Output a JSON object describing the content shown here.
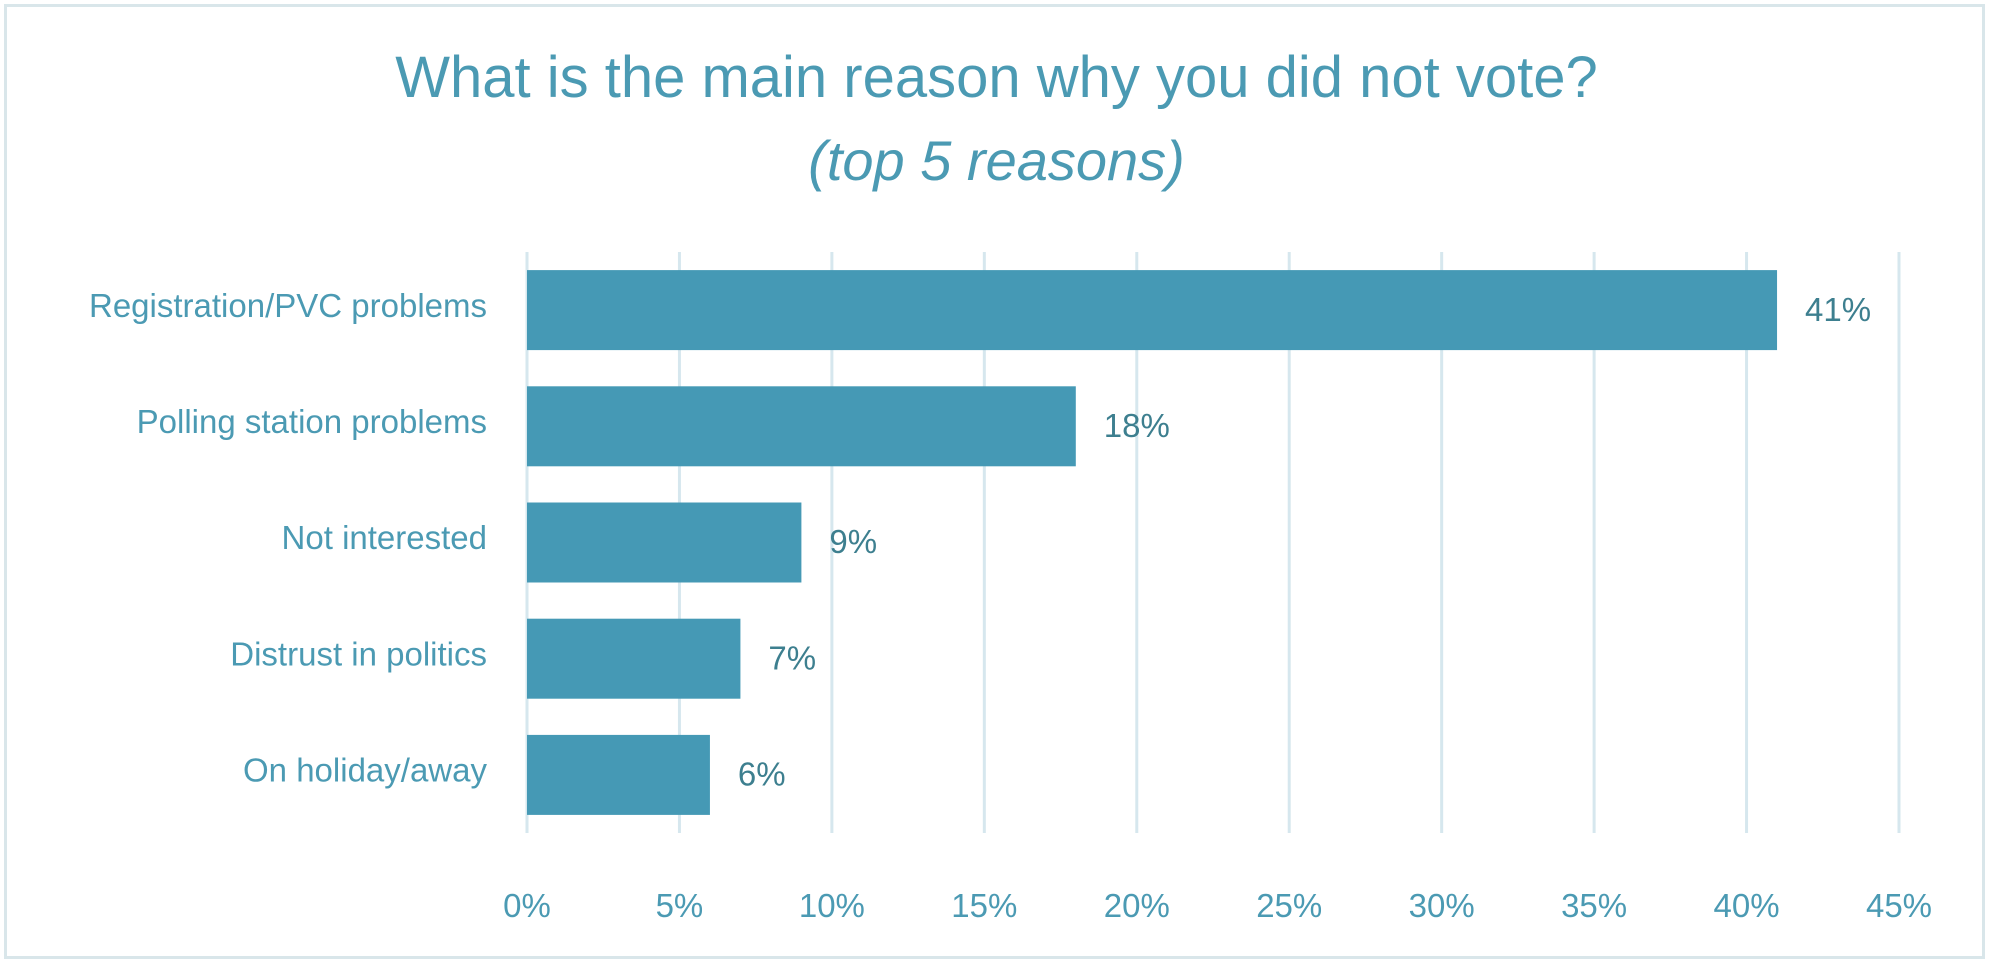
{
  "chart_data": {
    "type": "bar",
    "orientation": "horizontal",
    "title": "What is the main reason why you did not vote?",
    "subtitle": "(top 5 reasons)",
    "categories": [
      "Registration/PVC problems",
      "Polling station problems",
      "Not interested",
      "Distrust in politics",
      "On holiday/away"
    ],
    "values": [
      41,
      18,
      9,
      7,
      6
    ],
    "value_labels": [
      "41%",
      "18%",
      "9%",
      "7%",
      "6%"
    ],
    "xlim": [
      0,
      45
    ],
    "xticks": [
      0,
      5,
      10,
      15,
      20,
      25,
      30,
      35,
      40,
      45
    ],
    "xtick_labels": [
      "0%",
      "5%",
      "10%",
      "15%",
      "20%",
      "25%",
      "30%",
      "35%",
      "40%",
      "45%"
    ],
    "xlabel": "",
    "ylabel": "",
    "grid": "vertical",
    "legend": "none",
    "colors": {
      "bar": "#4599b5",
      "grid": "#d6e7ee",
      "text": "#4b9ab3",
      "value_text": "#3d7f8f",
      "border": "#d9e6ea"
    }
  }
}
